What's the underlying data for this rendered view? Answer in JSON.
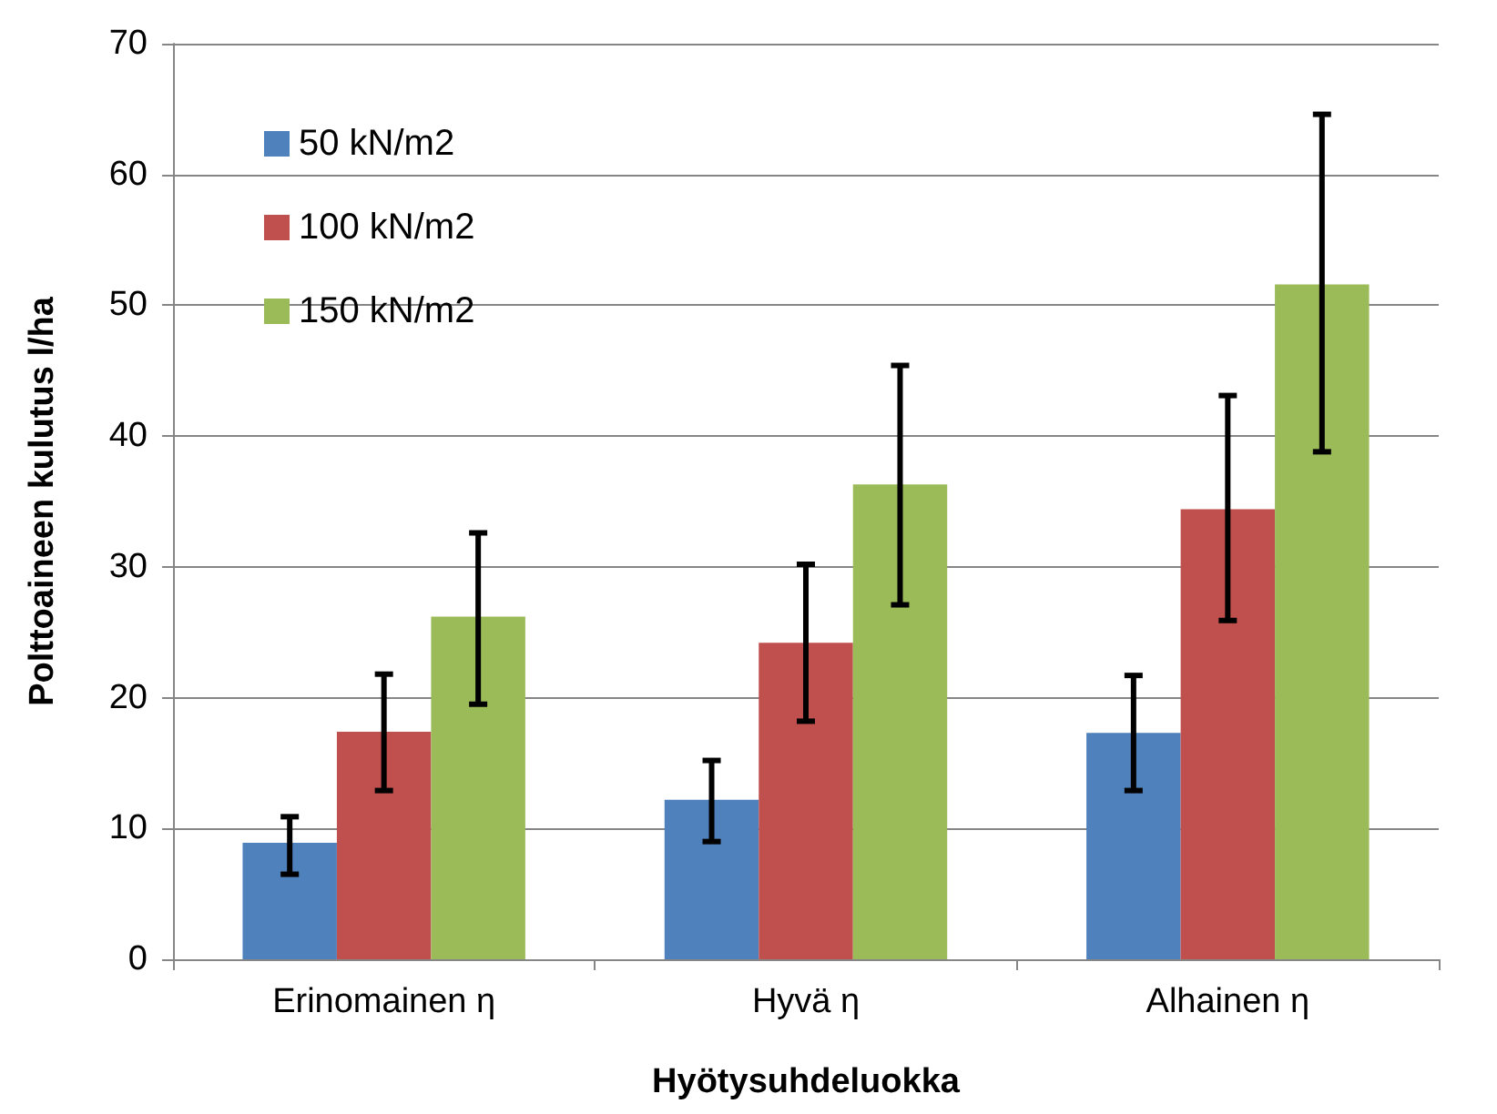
{
  "chart_data": {
    "type": "bar",
    "xlabel": "Hyötysuhdeluokka",
    "ylabel": "Polttoaineen kulutus l/ha",
    "categories": [
      "Erinomainen η",
      "Hyvä η",
      "Alhainen η"
    ],
    "series": [
      {
        "name": "50 kN/m2",
        "color": "#4f81bd",
        "values": [
          8.9,
          12.2,
          17.3
        ],
        "errors": [
          [
            6.5,
            10.9
          ],
          [
            9.0,
            15.2
          ],
          [
            12.9,
            21.7
          ]
        ]
      },
      {
        "name": "100 kN/m2",
        "color": "#c0504d",
        "values": [
          17.4,
          24.2,
          34.4
        ],
        "errors": [
          [
            12.9,
            21.8
          ],
          [
            18.2,
            30.2
          ],
          [
            25.9,
            43.1
          ]
        ]
      },
      {
        "name": "150 kN/m2",
        "color": "#9bbb59",
        "values": [
          26.2,
          36.3,
          51.6
        ],
        "errors": [
          [
            19.5,
            32.6
          ],
          [
            27.1,
            45.4
          ],
          [
            38.8,
            64.6
          ]
        ]
      }
    ],
    "ylim": [
      0,
      70
    ],
    "yticks": [
      0,
      10,
      20,
      30,
      40,
      50,
      60,
      70
    ],
    "grid": "y",
    "legend": "top left"
  }
}
